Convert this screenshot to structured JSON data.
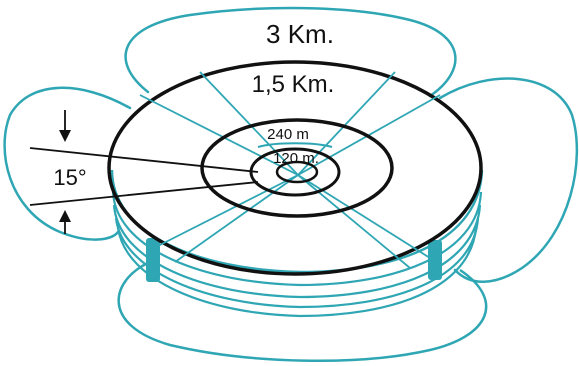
{
  "labels": {
    "ring_3km": "3 Km.",
    "ring_1_5km": "1,5 Km.",
    "ring_240m": "240 m",
    "ring_120m": "120 m.",
    "angle": "15°"
  },
  "colors": {
    "beam": "#2fa6b4",
    "ring": "#111111",
    "background": "#ffffff"
  }
}
